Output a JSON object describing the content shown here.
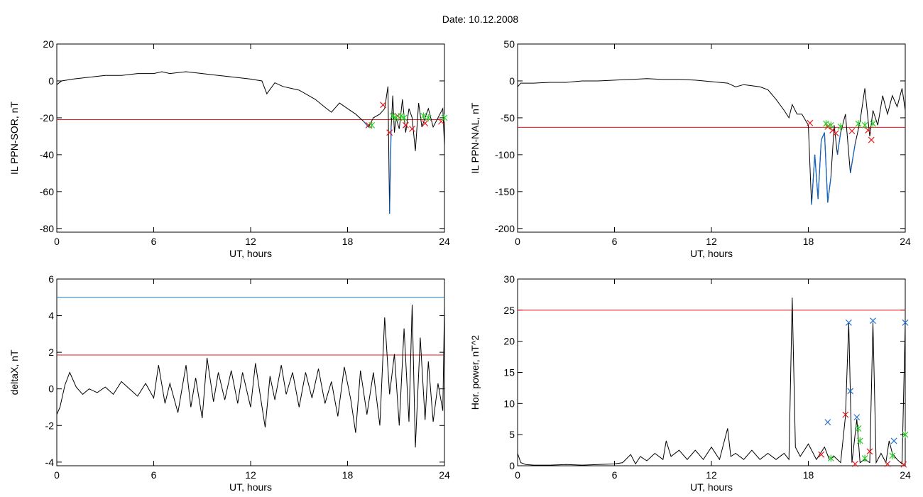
{
  "title": "Date:  10.12.2008",
  "colors": {
    "trace": "#000000",
    "threshold_red": "#e41a1c",
    "threshold_blue": "#1f78b4",
    "segment_blue": "#1565c0",
    "marker_red": "#e41a1c",
    "marker_green": "#33cc33",
    "marker_blue": "#1f6fd0"
  },
  "chart_data": [
    {
      "type": "line",
      "ylabel": "IL PPN-SOR, nT",
      "xlabel": "UT, hours",
      "xlim": [
        0,
        24
      ],
      "ylim": [
        -82,
        20
      ],
      "xticks": [
        0,
        6,
        12,
        18,
        24
      ],
      "yticks": [
        20,
        0,
        -20,
        -40,
        -60,
        -80
      ],
      "threshold_red": -21,
      "series": [
        {
          "x": [
            0,
            0.3,
            1,
            2,
            3,
            4,
            5,
            6,
            6.5,
            7,
            8,
            9,
            10,
            11,
            12,
            12.7,
            13,
            13.5,
            14,
            15,
            16,
            16.7,
            17,
            17.5,
            18,
            18.5,
            19,
            19.3,
            19.6,
            20,
            20.3,
            20.5,
            20.6,
            20.7,
            20.8,
            20.9,
            21.0,
            21.2,
            21.4,
            21.6,
            21.8,
            22.0,
            22.2,
            22.4,
            22.6,
            22.8,
            23.0,
            23.3,
            23.6,
            23.9,
            24
          ],
          "y": [
            -2,
            0,
            1,
            2,
            3,
            3,
            4,
            4,
            5,
            4,
            5,
            4,
            3,
            2,
            1,
            0,
            -7,
            -1,
            -3,
            -5,
            -10,
            -15,
            -17,
            -12,
            -15,
            -18,
            -22,
            -25,
            -20,
            -18,
            -15,
            -3,
            -72,
            -25,
            -8,
            -28,
            -20,
            -26,
            -10,
            -28,
            -15,
            -20,
            -38,
            -12,
            -25,
            -20,
            -15,
            -25,
            -20,
            -15,
            -35
          ]
        }
      ],
      "markers_red": [
        [
          19.3,
          -24
        ],
        [
          20.2,
          -13
        ],
        [
          20.6,
          -28
        ],
        [
          21.1,
          -19
        ],
        [
          21.6,
          -24
        ],
        [
          22.0,
          -26
        ],
        [
          22.8,
          -23
        ],
        [
          23.8,
          -22
        ]
      ],
      "markers_green": [
        [
          19.5,
          -24
        ],
        [
          20.8,
          -19
        ],
        [
          21.0,
          -20
        ],
        [
          21.3,
          -19
        ],
        [
          21.5,
          -20
        ],
        [
          22.7,
          -19
        ],
        [
          23.0,
          -20
        ],
        [
          24.0,
          -20
        ]
      ]
    },
    {
      "type": "line",
      "ylabel": "IL PPN-NAL, nT",
      "xlabel": "UT, hours",
      "xlim": [
        0,
        24
      ],
      "ylim": [
        -205,
        50
      ],
      "xticks": [
        0,
        6,
        12,
        18,
        24
      ],
      "yticks": [
        50,
        0,
        -50,
        -100,
        -150,
        -200
      ],
      "threshold_red": -63,
      "series": [
        {
          "x": [
            0,
            0.2,
            1,
            2,
            3,
            4,
            5,
            6,
            7,
            8,
            9,
            10,
            11,
            12,
            13,
            13.5,
            14,
            15,
            15.5,
            16,
            16.5,
            16.8,
            17.0,
            17.3,
            17.6,
            18.0,
            18.2,
            18.4,
            18.6,
            18.8,
            19.0,
            19.2,
            19.4,
            19.6,
            19.8,
            20.0,
            20.3,
            20.6,
            20.9,
            21.2,
            21.5,
            21.8,
            22.0,
            22.3,
            22.6,
            22.9,
            23.2,
            23.5,
            23.8,
            24
          ],
          "y": [
            -8,
            -3,
            -3,
            -2,
            -2,
            0,
            0,
            1,
            2,
            3,
            2,
            2,
            1,
            -1,
            -3,
            -8,
            -5,
            -8,
            -12,
            -25,
            -40,
            -50,
            -32,
            -45,
            -45,
            -60,
            -168,
            -100,
            -160,
            -80,
            -70,
            -165,
            -130,
            -60,
            -100,
            -70,
            -45,
            -125,
            -85,
            -55,
            -10,
            -75,
            -40,
            -60,
            -20,
            -45,
            -20,
            -35,
            -10,
            -40
          ]
        }
      ],
      "markers_red": [
        [
          18.1,
          -57
        ],
        [
          19.2,
          -62
        ],
        [
          19.5,
          -67
        ],
        [
          19.7,
          -71
        ],
        [
          20.7,
          -68
        ],
        [
          21.7,
          -67
        ],
        [
          21.9,
          -80
        ]
      ],
      "markers_green": [
        [
          19.1,
          -58
        ],
        [
          19.4,
          -60
        ],
        [
          20.0,
          -62
        ],
        [
          21.1,
          -58
        ],
        [
          21.5,
          -60
        ],
        [
          22.0,
          -58
        ]
      ]
    },
    {
      "type": "line",
      "ylabel": "deltaX, nT",
      "xlabel": "UT, hours",
      "xlim": [
        0,
        24
      ],
      "ylim": [
        -4.2,
        6
      ],
      "xticks": [
        0,
        6,
        12,
        18,
        24
      ],
      "yticks": [
        6,
        4,
        2,
        0,
        -2,
        -4
      ],
      "threshold_red": 1.85,
      "threshold_blue": 5.0,
      "series": [
        {
          "x": [
            0,
            0.2,
            0.5,
            0.8,
            1.2,
            1.6,
            2,
            2.5,
            3,
            3.5,
            4,
            4.5,
            5,
            5.5,
            6,
            6.3,
            6.7,
            7,
            7.5,
            8,
            8.3,
            8.6,
            9,
            9.3,
            9.7,
            10,
            10.4,
            10.8,
            11.2,
            11.5,
            12,
            12.3,
            12.6,
            12.9,
            13.2,
            13.5,
            13.9,
            14.2,
            14.6,
            15,
            15.4,
            15.8,
            16.2,
            16.6,
            17,
            17.4,
            17.8,
            18.2,
            18.5,
            18.8,
            19.2,
            19.6,
            20,
            20.3,
            20.6,
            20.9,
            21.2,
            21.5,
            21.8,
            22.0,
            22.2,
            22.5,
            22.8,
            23.0,
            23.3,
            23.6,
            23.9,
            24
          ],
          "y": [
            -1.4,
            -1.0,
            0.2,
            0.9,
            0.1,
            -0.3,
            0.0,
            -0.2,
            0.1,
            -0.3,
            0.4,
            0.0,
            -0.4,
            0.3,
            -0.5,
            1.3,
            -0.8,
            0.3,
            -1.3,
            1.3,
            -1.0,
            0.6,
            -1.6,
            1.7,
            -0.7,
            0.9,
            -0.6,
            1.0,
            -0.8,
            0.9,
            -1.0,
            1.4,
            -0.4,
            -2.1,
            0.7,
            -0.6,
            1.3,
            -0.3,
            0.9,
            -1.0,
            0.9,
            -0.5,
            1.1,
            -0.8,
            0.4,
            -1.5,
            1.2,
            -0.6,
            -2.4,
            1.0,
            -1.4,
            0.9,
            -2.0,
            3.9,
            -0.3,
            1.9,
            -2.0,
            3.3,
            -1.8,
            4.6,
            -3.2,
            2.8,
            -1.7,
            1.5,
            -1.8,
            0.3,
            -1.2,
            4.5
          ]
        }
      ]
    },
    {
      "type": "line",
      "ylabel": "Hor. power, nT^2",
      "xlabel": "UT, hours",
      "xlim": [
        0,
        24
      ],
      "ylim": [
        0,
        30
      ],
      "xticks": [
        0,
        6,
        12,
        18,
        24
      ],
      "yticks": [
        30,
        25,
        20,
        15,
        10,
        5,
        0
      ],
      "threshold_red": 25,
      "series": [
        {
          "x": [
            0,
            0.2,
            0.5,
            1,
            2,
            3,
            4,
            5,
            6,
            6.5,
            7,
            7.3,
            7.6,
            8,
            8.5,
            9,
            9.2,
            9.5,
            10,
            10.5,
            11,
            11.5,
            12,
            12.5,
            13,
            13.2,
            13.5,
            14,
            14.5,
            15,
            15.5,
            16,
            16.5,
            16.8,
            17.0,
            17.2,
            17.5,
            18,
            18.5,
            19,
            19.3,
            19.6,
            20,
            20.3,
            20.5,
            20.7,
            21.0,
            21.2,
            21.5,
            21.8,
            22.0,
            22.2,
            22.5,
            22.8,
            23.0,
            23.2,
            23.5,
            23.8,
            24
          ],
          "y": [
            2,
            0.5,
            0.2,
            0.1,
            0.1,
            0.2,
            0.1,
            0.2,
            0.3,
            0.5,
            1.8,
            0.3,
            1.5,
            0.8,
            2.0,
            1.0,
            4.0,
            1.5,
            2.5,
            1.0,
            2.5,
            1.0,
            3.0,
            1.0,
            6.0,
            1.5,
            2.0,
            1.0,
            2.5,
            1.0,
            2.0,
            1.0,
            2.0,
            1.0,
            27.0,
            3.0,
            1.5,
            3.5,
            1.0,
            3.0,
            1.0,
            1.5,
            0.5,
            8.0,
            23.0,
            0.5,
            7.5,
            0.5,
            1.0,
            0.5,
            23.0,
            0.5,
            2.0,
            0.5,
            4.0,
            2.0,
            1.0,
            0.3,
            23.0
          ]
        }
      ],
      "markers_blue": [
        [
          19.2,
          7.0
        ],
        [
          20.5,
          23.0
        ],
        [
          20.6,
          12.0
        ],
        [
          21.0,
          7.8
        ],
        [
          22.0,
          23.3
        ],
        [
          23.3,
          4.0
        ],
        [
          24.0,
          23.0
        ]
      ],
      "markers_red": [
        [
          18.8,
          1.8
        ],
        [
          20.3,
          8.2
        ],
        [
          20.9,
          0.3
        ],
        [
          21.8,
          2.3
        ],
        [
          22.9,
          0.3
        ],
        [
          23.9,
          0.2
        ]
      ],
      "markers_green": [
        [
          19.4,
          1.2
        ],
        [
          21.1,
          6.0
        ],
        [
          21.2,
          4.0
        ],
        [
          21.5,
          1.2
        ],
        [
          23.2,
          1.6
        ],
        [
          24.0,
          5.0
        ]
      ]
    }
  ]
}
